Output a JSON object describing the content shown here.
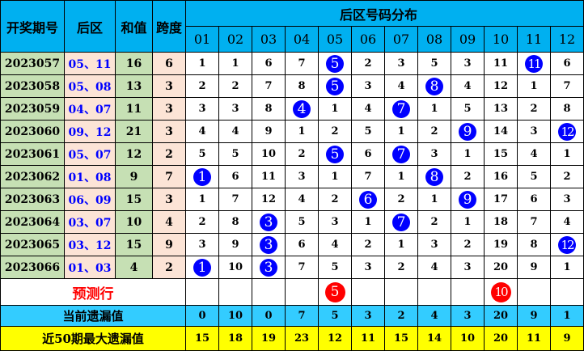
{
  "header": {
    "issue": "开奖期号",
    "back": "后区",
    "sum": "和值",
    "span": "跨度",
    "dist": "后区号码分布",
    "numbers": [
      "01",
      "02",
      "03",
      "04",
      "05",
      "06",
      "07",
      "08",
      "09",
      "10",
      "11",
      "12"
    ]
  },
  "rows": [
    {
      "issue": "2023057",
      "back": "05、11",
      "sum": "16",
      "span": "6",
      "hits": [
        5,
        11
      ],
      "cells": [
        "1",
        "1",
        "6",
        "7",
        "5",
        "2",
        "3",
        "5",
        "3",
        "11",
        "11",
        "6"
      ]
    },
    {
      "issue": "2023058",
      "back": "05、08",
      "sum": "13",
      "span": "3",
      "hits": [
        5,
        8
      ],
      "cells": [
        "2",
        "2",
        "7",
        "8",
        "5",
        "3",
        "4",
        "8",
        "4",
        "12",
        "1",
        "7"
      ]
    },
    {
      "issue": "2023059",
      "back": "04、07",
      "sum": "11",
      "span": "3",
      "hits": [
        4,
        7
      ],
      "cells": [
        "3",
        "3",
        "8",
        "4",
        "1",
        "4",
        "7",
        "1",
        "5",
        "13",
        "2",
        "8"
      ]
    },
    {
      "issue": "2023060",
      "back": "09、12",
      "sum": "21",
      "span": "3",
      "hits": [
        9,
        12
      ],
      "cells": [
        "4",
        "4",
        "9",
        "1",
        "2",
        "5",
        "1",
        "2",
        "9",
        "14",
        "3",
        "12"
      ]
    },
    {
      "issue": "2023061",
      "back": "05、07",
      "sum": "12",
      "span": "2",
      "hits": [
        5,
        7
      ],
      "cells": [
        "5",
        "5",
        "10",
        "2",
        "5",
        "6",
        "7",
        "3",
        "1",
        "15",
        "4",
        "1"
      ]
    },
    {
      "issue": "2023062",
      "back": "01、08",
      "sum": "9",
      "span": "7",
      "hits": [
        1,
        8
      ],
      "cells": [
        "1",
        "6",
        "11",
        "3",
        "1",
        "7",
        "1",
        "8",
        "2",
        "16",
        "5",
        "2"
      ]
    },
    {
      "issue": "2023063",
      "back": "06、09",
      "sum": "15",
      "span": "3",
      "hits": [
        6,
        9
      ],
      "cells": [
        "1",
        "7",
        "12",
        "4",
        "2",
        "6",
        "2",
        "1",
        "9",
        "17",
        "6",
        "3"
      ]
    },
    {
      "issue": "2023064",
      "back": "03、07",
      "sum": "10",
      "span": "4",
      "hits": [
        3,
        7
      ],
      "cells": [
        "2",
        "8",
        "3",
        "5",
        "3",
        "1",
        "7",
        "2",
        "1",
        "18",
        "7",
        "4"
      ]
    },
    {
      "issue": "2023065",
      "back": "03、12",
      "sum": "15",
      "span": "9",
      "hits": [
        3,
        12
      ],
      "cells": [
        "3",
        "9",
        "3",
        "6",
        "4",
        "2",
        "1",
        "3",
        "2",
        "19",
        "8",
        "12"
      ]
    },
    {
      "issue": "2023066",
      "back": "01、03",
      "sum": "4",
      "span": "2",
      "hits": [
        1,
        3
      ],
      "cells": [
        "1",
        "10",
        "3",
        "7",
        "5",
        "3",
        "2",
        "4",
        "3",
        "20",
        "9",
        "1"
      ]
    }
  ],
  "predict": {
    "label": "预测行",
    "cells": [
      "",
      "",
      "",
      "",
      "5",
      "",
      "",
      "",
      "",
      "10",
      "",
      ""
    ]
  },
  "current_omission": {
    "label": "当前遗漏值",
    "values": [
      "0",
      "10",
      "0",
      "7",
      "5",
      "3",
      "2",
      "4",
      "3",
      "20",
      "9",
      "1"
    ]
  },
  "max_omission": {
    "label": "近50期最大遗漏值",
    "values": [
      "15",
      "18",
      "19",
      "23",
      "12",
      "11",
      "15",
      "14",
      "10",
      "20",
      "11",
      "9"
    ]
  },
  "colors": {
    "header": "#00b0f0",
    "hit_ball": "#0000ff",
    "predict_ball": "#ff0000",
    "current_row": "#33ccff",
    "max_row": "#ffff00"
  }
}
